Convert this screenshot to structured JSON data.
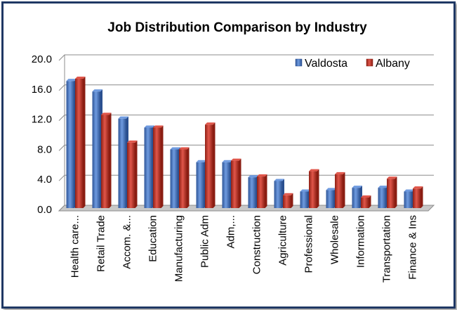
{
  "chart_data": {
    "type": "bar",
    "title": "Job Distribution Comparison by Industry",
    "xlabel": "",
    "ylabel": "",
    "ylim": [
      0,
      20
    ],
    "yticks": [
      "0.0",
      "4.0",
      "8.0",
      "12.0",
      "16.0",
      "20.0"
    ],
    "grid": true,
    "legend_position": "top-right",
    "categories": [
      "Health care...",
      "Retail Trade",
      "Accom. &...",
      "Education",
      "Manufacturing",
      "Public Adm",
      "Adm,...",
      "Construction",
      "Agriculture",
      "Professional",
      "Wholesale",
      "Information",
      "Transportation",
      "Finance & Ins"
    ],
    "series": [
      {
        "name": "Valdosta",
        "color": "#4472c4",
        "values": [
          16.9,
          15.5,
          11.9,
          10.7,
          7.8,
          6.1,
          6.1,
          4.1,
          3.6,
          2.2,
          2.4,
          2.7,
          2.7,
          2.2
        ]
      },
      {
        "name": "Albany",
        "color": "#c0392b",
        "values": [
          17.2,
          12.4,
          8.7,
          10.7,
          7.8,
          11.1,
          6.3,
          4.2,
          1.7,
          4.9,
          4.5,
          1.4,
          3.9,
          2.6
        ]
      }
    ]
  }
}
